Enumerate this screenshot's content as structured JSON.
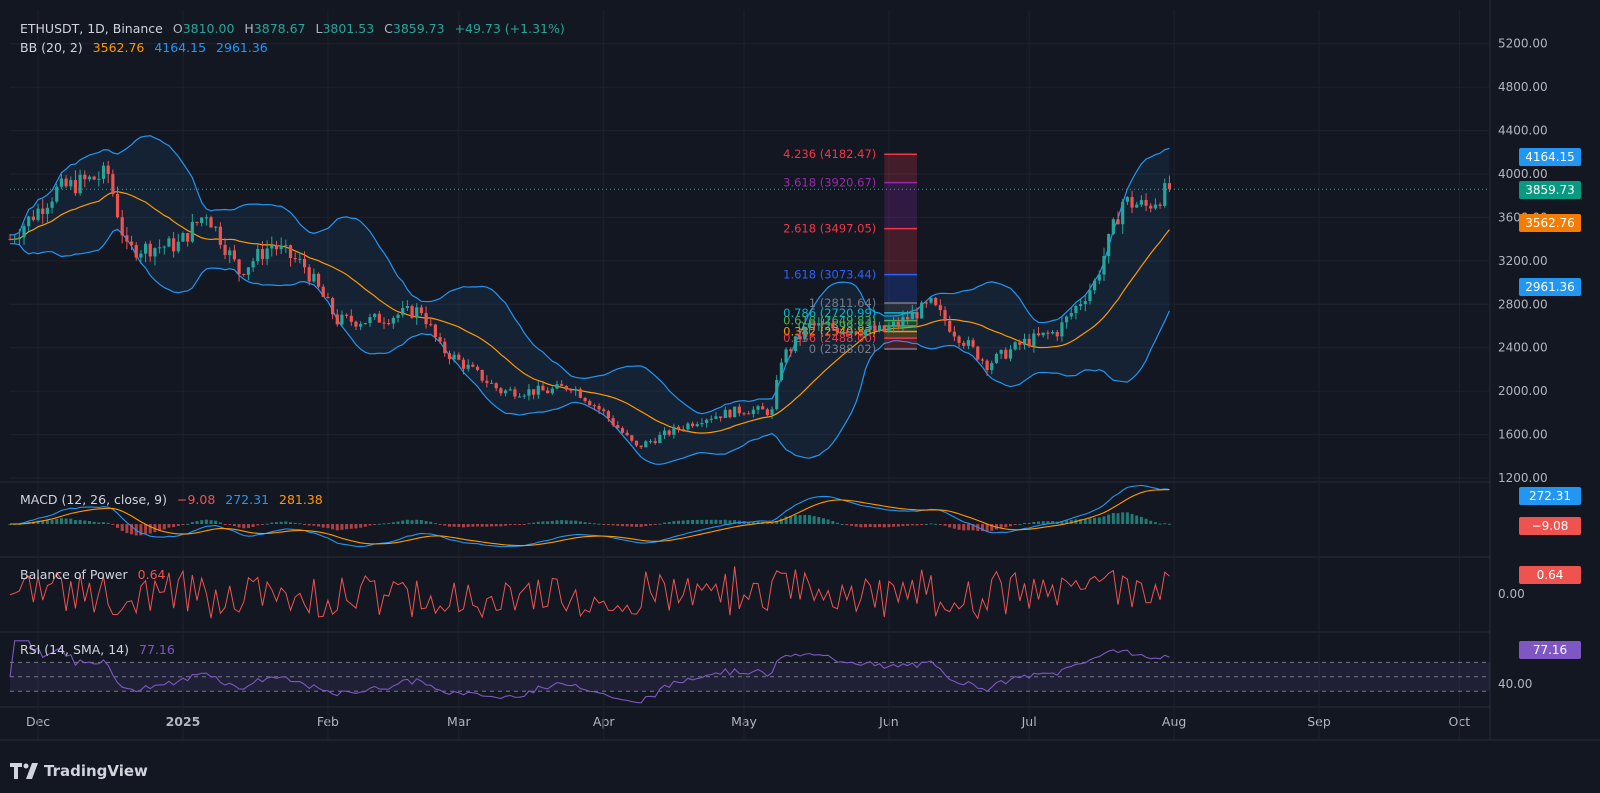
{
  "header": {
    "symbol": "ETHUSDT, 1D, Binance",
    "o_label": "O",
    "o": "3810.00",
    "h_label": "H",
    "h": "3878.67",
    "l_label": "L",
    "l": "3801.53",
    "c_label": "C",
    "c": "3859.73",
    "change": "+49.73 (+1.31%)"
  },
  "bb": {
    "label": "BB (20, 2)",
    "basis": "3562.76",
    "upper": "4164.15",
    "lower": "2961.36"
  },
  "macd": {
    "label": "MACD (12, 26, close, 9)",
    "hist": "−9.08",
    "macd": "272.31",
    "signal": "281.38"
  },
  "bop": {
    "label": "Balance of Power",
    "value": "0.64"
  },
  "rsi": {
    "label": "RSI (14, SMA, 14)",
    "value": "77.16"
  },
  "price_axis": [
    "5200.00",
    "4800.00",
    "4400.00",
    "4000.00",
    "3600.00",
    "3200.00",
    "2800.00",
    "2400.00",
    "2000.00",
    "1600.00",
    "1200.00"
  ],
  "badges": {
    "bb_upper": "4164.15",
    "last": "3859.73",
    "bb_basis": "3562.76",
    "bb_lower": "2961.36",
    "macd": "272.31",
    "hist": "−9.08",
    "bop": "0.64",
    "rsi": "77.16"
  },
  "bop_axis": "0.00",
  "rsi_axis": "40.00",
  "time_axis": [
    "Dec",
    "2025",
    "Feb",
    "Mar",
    "Apr",
    "May",
    "Jun",
    "Jul",
    "Aug",
    "Sep",
    "Oct"
  ],
  "fib_levels": [
    {
      "label": "4.236 (4182.47)",
      "price": 4182.47,
      "color": "#f23645"
    },
    {
      "label": "3.618 (3920.67)",
      "price": 3920.67,
      "color": "#9c27b0"
    },
    {
      "label": "2.618 (3497.05)",
      "price": 3497.05,
      "color": "#f23645"
    },
    {
      "label": "1.618 (3073.44)",
      "price": 3073.44,
      "color": "#2962ff"
    },
    {
      "label": "1 (2811.64)",
      "price": 2811.64,
      "color": "#787b86"
    },
    {
      "label": "0.786 (2720.99)",
      "price": 2720.99,
      "color": "#00bcd4"
    },
    {
      "label": "0.618 (2649.83)",
      "price": 2649.83,
      "color": "#4caf50"
    },
    {
      "label": "0.5 (2599.83)",
      "price": 2599.83,
      "color": "#4caf50"
    },
    {
      "label": "0.382 (2549.83)",
      "price": 2549.83,
      "color": "#ff9800"
    },
    {
      "label": "0.236 (2488.00)",
      "price": 2488.0,
      "color": "#f23645"
    },
    {
      "label": "0 (2388.02)",
      "price": 2388.02,
      "color": "#787b86"
    }
  ],
  "brand": "TradingView",
  "colors": {
    "up": "#26a69a",
    "down": "#ef5350",
    "bb_line": "#2196f3",
    "basis": "#ff9800",
    "rsi": "#7e57c2",
    "bop": "#ef5350"
  },
  "chart_data": {
    "type": "candlestick",
    "title": "ETHUSDT, 1D, Binance",
    "ylim": [
      1200,
      5400
    ],
    "x_range": [
      "2024-11-25",
      "2025-10-05"
    ],
    "last_date": "2025-07-31",
    "price_path": [
      [
        "2024-11-25",
        3400
      ],
      [
        "2024-12-05",
        3850
      ],
      [
        "2024-12-16",
        4000
      ],
      [
        "2024-12-20",
        3300
      ],
      [
        "2024-12-31",
        3350
      ],
      [
        "2025-01-06",
        3650
      ],
      [
        "2025-01-13",
        3100
      ],
      [
        "2025-01-20",
        3350
      ],
      [
        "2025-01-27",
        3150
      ],
      [
        "2025-02-03",
        2650
      ],
      [
        "2025-02-10",
        2650
      ],
      [
        "2025-02-21",
        2750
      ],
      [
        "2025-02-25",
        2400
      ],
      [
        "2025-03-10",
        2000
      ],
      [
        "2025-03-20",
        2000
      ],
      [
        "2025-03-25",
        2050
      ],
      [
        "2025-04-01",
        1800
      ],
      [
        "2025-04-08",
        1480
      ],
      [
        "2025-04-15",
        1620
      ],
      [
        "2025-04-22",
        1750
      ],
      [
        "2025-05-01",
        1830
      ],
      [
        "2025-05-07",
        1810
      ],
      [
        "2025-05-09",
        2300
      ],
      [
        "2025-05-15",
        2600
      ],
      [
        "2025-05-31",
        2550
      ],
      [
        "2025-06-10",
        2800
      ],
      [
        "2025-06-15",
        2550
      ],
      [
        "2025-06-22",
        2250
      ],
      [
        "2025-06-30",
        2450
      ],
      [
        "2025-07-07",
        2550
      ],
      [
        "2025-07-15",
        3000
      ],
      [
        "2025-07-21",
        3750
      ],
      [
        "2025-07-26",
        3700
      ],
      [
        "2025-07-31",
        3859.73
      ]
    ],
    "series": [
      {
        "name": "BB (20, 2) upper",
        "last": 4164.15
      },
      {
        "name": "BB (20, 2) basis",
        "last": 3562.76
      },
      {
        "name": "BB (20, 2) lower",
        "last": 2961.36
      }
    ],
    "indicators": {
      "macd": {
        "macd": 272.31,
        "signal": 281.38,
        "histogram": -9.08
      },
      "balance_of_power": 0.64,
      "rsi": 77.16
    }
  }
}
